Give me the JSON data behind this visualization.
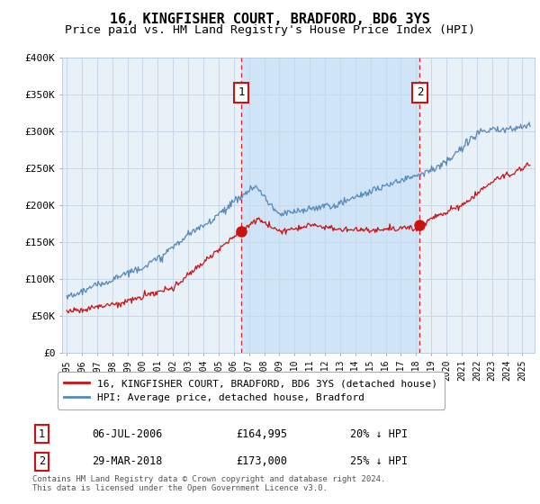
{
  "title": "16, KINGFISHER COURT, BRADFORD, BD6 3YS",
  "subtitle": "Price paid vs. HM Land Registry's House Price Index (HPI)",
  "ylim": [
    0,
    400000
  ],
  "yticks": [
    0,
    50000,
    100000,
    150000,
    200000,
    250000,
    300000,
    350000,
    400000
  ],
  "ytick_labels": [
    "£0",
    "£50K",
    "£100K",
    "£150K",
    "£200K",
    "£250K",
    "£300K",
    "£350K",
    "£400K"
  ],
  "xlim_start": 1994.7,
  "xlim_end": 2025.8,
  "background_color": "#ffffff",
  "plot_bg_color": "#e8f0f8",
  "plot_bg_highlight": "#d0e4f7",
  "grid_color": "#c8d8e8",
  "red_line_color": "#cc1111",
  "blue_line_color": "#5588bb",
  "marker1_x": 2006.51,
  "marker1_y": 164995,
  "marker2_x": 2018.24,
  "marker2_y": 173000,
  "marker_color": "#cc1111",
  "vline_color": "#dd2222",
  "legend_label_red": "16, KINGFISHER COURT, BRADFORD, BD6 3YS (detached house)",
  "legend_label_blue": "HPI: Average price, detached house, Bradford",
  "annotation1_label": "1",
  "annotation2_label": "2",
  "table_row1": [
    "1",
    "06-JUL-2006",
    "£164,995",
    "20% ↓ HPI"
  ],
  "table_row2": [
    "2",
    "29-MAR-2018",
    "£173,000",
    "25% ↓ HPI"
  ],
  "footnote": "Contains HM Land Registry data © Crown copyright and database right 2024.\nThis data is licensed under the Open Government Licence v3.0.",
  "title_fontsize": 11,
  "subtitle_fontsize": 9.5
}
